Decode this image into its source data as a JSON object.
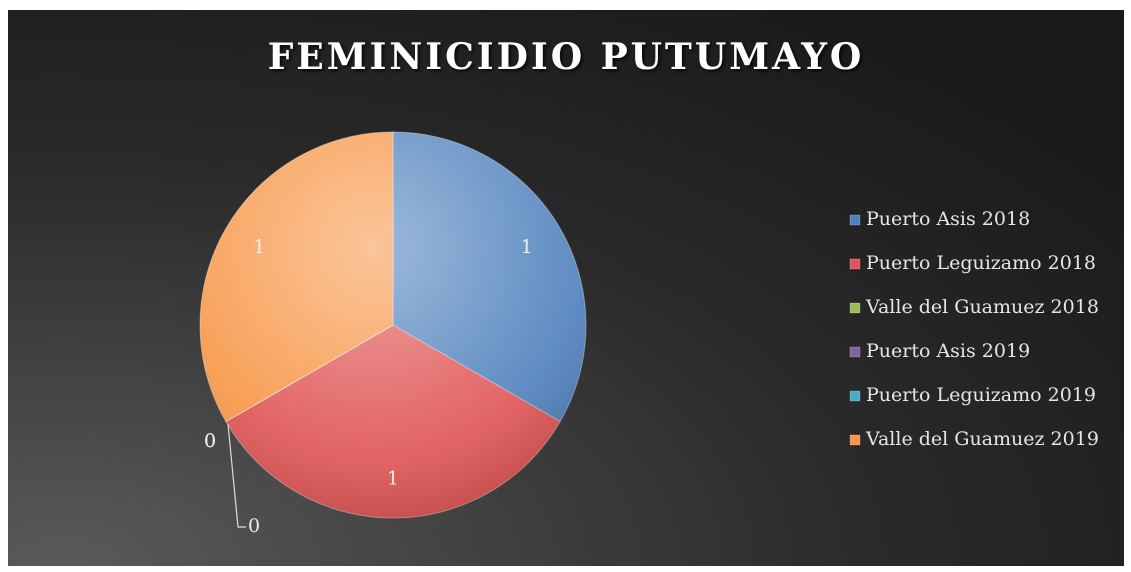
{
  "chart_data": {
    "type": "pie",
    "title": "FEMINICIDIO PUTUMAYO",
    "categories": [
      "Puerto Asis 2018",
      "Puerto Leguizamo 2018",
      "Valle del Guamuez 2018",
      "Puerto Asis 2019",
      "Puerto Leguizamo 2019",
      "Valle del Guamuez 2019"
    ],
    "values": [
      1,
      1,
      0,
      0,
      0,
      1
    ],
    "colors": [
      "#4f81bd",
      "#e05555",
      "#9bbb59",
      "#8064a2",
      "#4bacc6",
      "#f79646"
    ],
    "legend": "right"
  }
}
